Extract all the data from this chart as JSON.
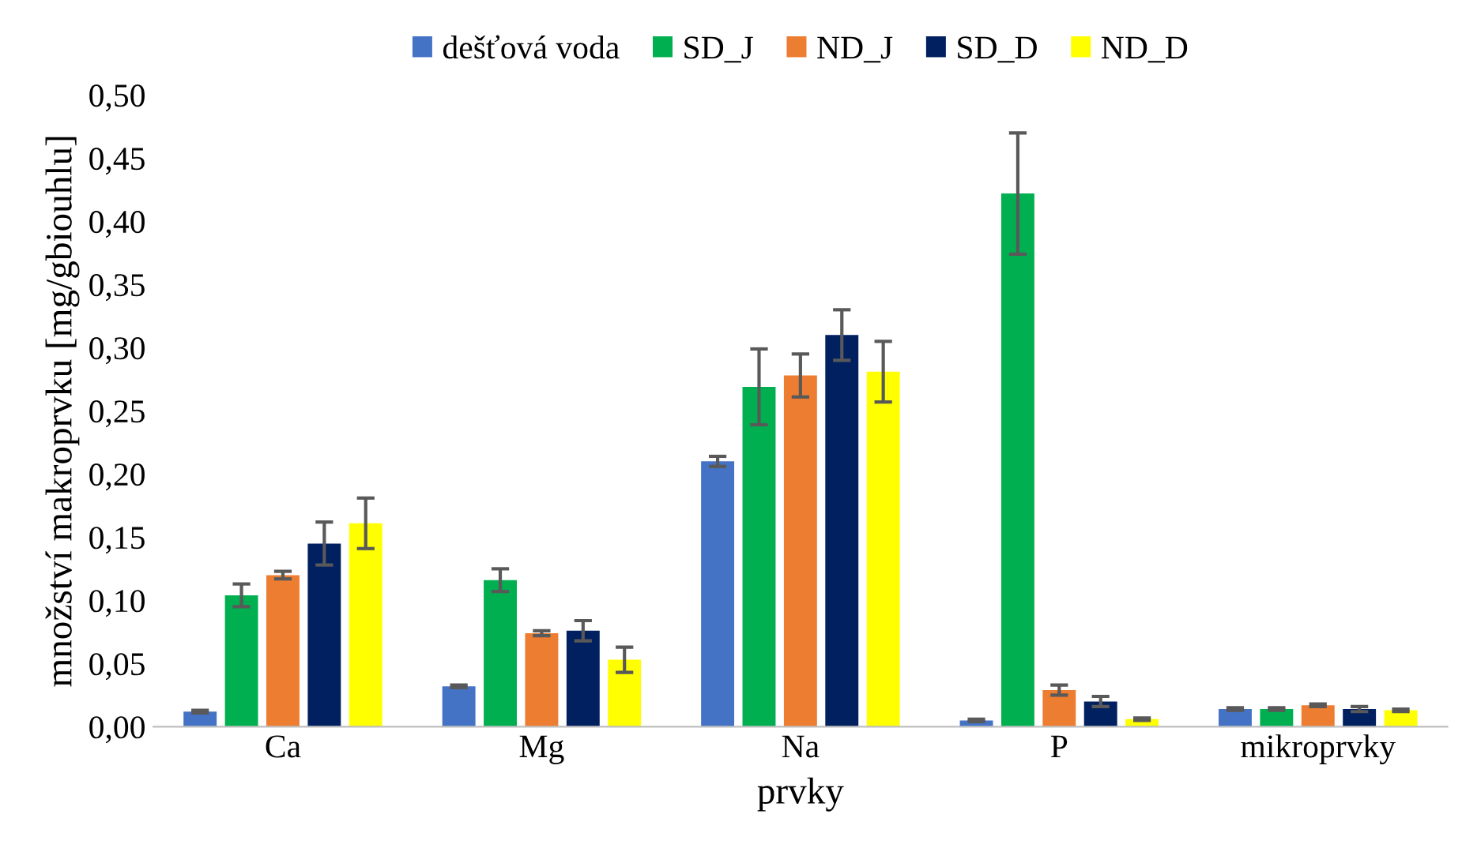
{
  "chart_data": {
    "type": "bar",
    "xlabel": "prvky",
    "ylabel": "množství makroprvku [mg/gbiouhlu]",
    "categories": [
      "Ca",
      "Mg",
      "Na",
      "P",
      "mikroprvky"
    ],
    "series": [
      {
        "name": "dešťová voda",
        "color": "#4472c4",
        "values": [
          0.012,
          0.032,
          0.21,
          0.005,
          0.014
        ],
        "errors": [
          0.001,
          0.001,
          0.004,
          0.001,
          0.001
        ]
      },
      {
        "name": "SD_J",
        "color": "#00b050",
        "values": [
          0.104,
          0.116,
          0.269,
          0.422,
          0.014
        ],
        "errors": [
          0.009,
          0.009,
          0.03,
          0.048,
          0.001
        ]
      },
      {
        "name": "ND_J",
        "color": "#ed7d31",
        "values": [
          0.12,
          0.074,
          0.278,
          0.029,
          0.017
        ],
        "errors": [
          0.003,
          0.002,
          0.017,
          0.004,
          0.001
        ]
      },
      {
        "name": "SD_D",
        "color": "#002060",
        "values": [
          0.145,
          0.076,
          0.31,
          0.02,
          0.014
        ],
        "errors": [
          0.017,
          0.008,
          0.02,
          0.004,
          0.002
        ]
      },
      {
        "name": "ND_D",
        "color": "#ffff00",
        "values": [
          0.161,
          0.053,
          0.281,
          0.006,
          0.013
        ],
        "errors": [
          0.02,
          0.01,
          0.024,
          0.001,
          0.001
        ]
      }
    ],
    "ylim": [
      0,
      0.5
    ],
    "yticks": [
      {
        "value": 0,
        "label": "0,00"
      },
      {
        "value": 0.05,
        "label": "0,05"
      },
      {
        "value": 0.1,
        "label": "0,10"
      },
      {
        "value": 0.15,
        "label": "0,15"
      },
      {
        "value": 0.2,
        "label": "0,20"
      },
      {
        "value": 0.25,
        "label": "0,25"
      },
      {
        "value": 0.3,
        "label": "0,30"
      },
      {
        "value": 0.35,
        "label": "0,35"
      },
      {
        "value": 0.4,
        "label": "0,40"
      },
      {
        "value": 0.45,
        "label": "0,45"
      },
      {
        "value": 0.5,
        "label": "0,50"
      }
    ],
    "grid": false,
    "legend": "top"
  }
}
